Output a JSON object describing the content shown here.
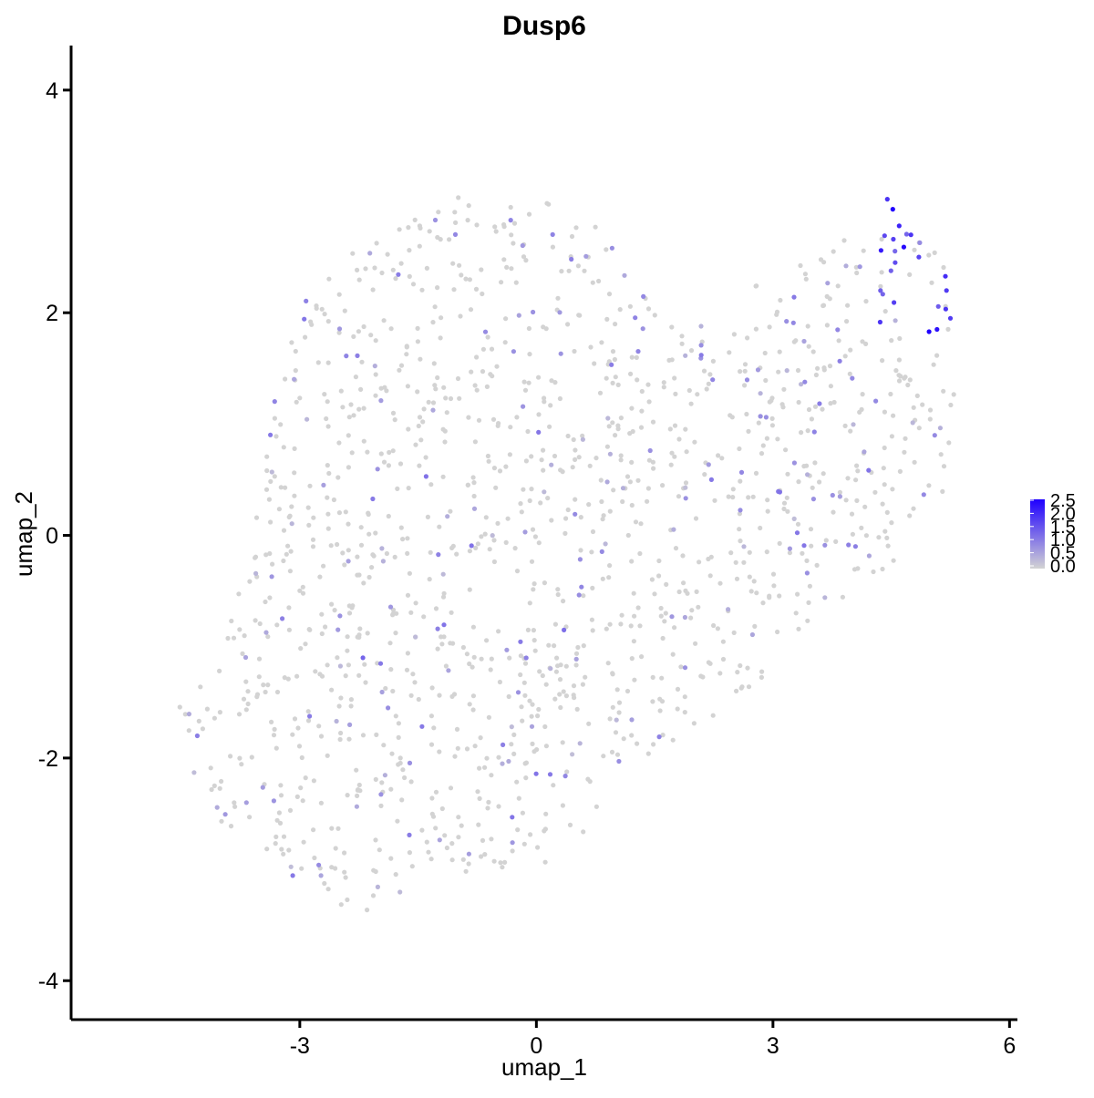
{
  "chart_data": {
    "type": "scatter",
    "title": "Dusp6",
    "xlabel": "umap_1",
    "ylabel": "umap_2",
    "xlim": [
      -5.9,
      6.1
    ],
    "ylim": [
      -4.35,
      4.4
    ],
    "x_ticks": [
      -3,
      0,
      3,
      6
    ],
    "y_ticks": [
      -4,
      -2,
      0,
      2,
      4
    ],
    "x_tick_labels": [
      "-3",
      "0",
      "3",
      "6"
    ],
    "y_tick_labels": [
      "-4",
      "-2",
      "0",
      "2",
      "4"
    ],
    "grid": false,
    "legend": {
      "placement": "right",
      "kind": "continuous colorbar",
      "range": [
        0,
        2.5
      ],
      "labels": [
        "2.5",
        "2.0",
        "1.5",
        "1.0",
        "0.5",
        "0.0"
      ]
    },
    "colors": {
      "low": "#d3d3d3",
      "high": "#1f00ff"
    },
    "shape_outline": [
      [
        -4.7,
        -1.2
      ],
      [
        -4.1,
        -1.4
      ],
      [
        -3.8,
        -0.5
      ],
      [
        -3.5,
        0.4
      ],
      [
        -3.3,
        1.3
      ],
      [
        -3.0,
        2.1
      ],
      [
        -2.4,
        2.5
      ],
      [
        -1.8,
        2.9
      ],
      [
        -1.0,
        3.05
      ],
      [
        0.0,
        3.05
      ],
      [
        0.7,
        2.85
      ],
      [
        1.2,
        2.45
      ],
      [
        1.5,
        2.0
      ],
      [
        2.0,
        1.9
      ],
      [
        2.8,
        2.25
      ],
      [
        3.5,
        2.55
      ],
      [
        4.3,
        2.75
      ],
      [
        4.6,
        3.05
      ],
      [
        5.1,
        2.6
      ],
      [
        5.35,
        2.2
      ],
      [
        5.3,
        1.3
      ],
      [
        5.2,
        0.4
      ],
      [
        4.6,
        -0.2
      ],
      [
        3.8,
        -0.6
      ],
      [
        3.2,
        -1.1
      ],
      [
        2.3,
        -1.6
      ],
      [
        1.3,
        -2.1
      ],
      [
        0.7,
        -2.6
      ],
      [
        0.0,
        -3.1
      ],
      [
        -1.2,
        -3.0
      ],
      [
        -2.1,
        -3.4
      ],
      [
        -2.7,
        -3.3
      ],
      [
        -3.6,
        -2.9
      ],
      [
        -4.3,
        -2.4
      ],
      [
        -4.5,
        -1.7
      ]
    ],
    "point_count": 1400,
    "expression_hotspot": {
      "center": [
        4.75,
        2.45
      ],
      "x_range": [
        4.3,
        5.3
      ],
      "y_range": [
        1.8,
        3.1
      ],
      "value_range": [
        1.2,
        2.5
      ]
    },
    "highlighted_points": [
      {
        "x": 4.52,
        "y": 2.93,
        "value": 2.5
      },
      {
        "x": 4.66,
        "y": 2.59,
        "value": 2.4
      },
      {
        "x": 4.98,
        "y": 1.83,
        "value": 2.5
      },
      {
        "x": 5.08,
        "y": 1.85,
        "value": 2.3
      },
      {
        "x": 4.37,
        "y": 2.56,
        "value": 2.2
      },
      {
        "x": 4.6,
        "y": 2.78,
        "value": 2.1
      },
      {
        "x": 4.45,
        "y": 3.02,
        "value": 1.9
      },
      {
        "x": 5.2,
        "y": 2.2,
        "value": 1.8
      },
      {
        "x": 4.75,
        "y": 2.7,
        "value": 1.9
      },
      {
        "x": 4.85,
        "y": 2.5,
        "value": 1.7
      },
      {
        "x": 5.25,
        "y": 1.95,
        "value": 1.8
      },
      {
        "x": 4.55,
        "y": 2.45,
        "value": 1.6
      },
      {
        "x": -2.2,
        "y": -1.1,
        "value": 1.3
      },
      {
        "x": 0.35,
        "y": -0.85,
        "value": 1.2
      },
      {
        "x": -4.3,
        "y": -1.8,
        "value": 1.0
      }
    ]
  }
}
